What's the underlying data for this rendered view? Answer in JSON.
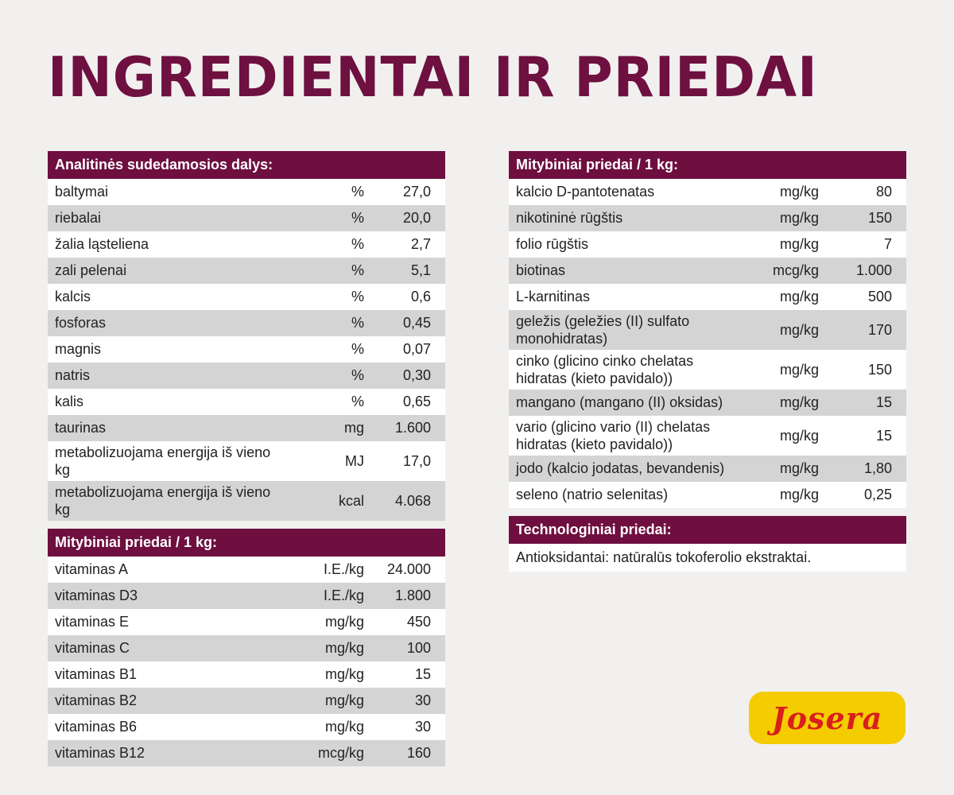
{
  "title": "INGREDIENTAI IR PRIEDAI",
  "analytical": {
    "heading": "Analitinės sudedamosios dalys:",
    "rows": [
      {
        "name": "baltymai",
        "unit": "%",
        "value": "27,0"
      },
      {
        "name": "riebalai",
        "unit": "%",
        "value": "20,0"
      },
      {
        "name": "žalia ląsteliena",
        "unit": "%",
        "value": "2,7"
      },
      {
        "name": "zali pelenai",
        "unit": "%",
        "value": "5,1"
      },
      {
        "name": "kalcis",
        "unit": "%",
        "value": "0,6"
      },
      {
        "name": "fosforas",
        "unit": "%",
        "value": "0,45"
      },
      {
        "name": "magnis",
        "unit": "%",
        "value": "0,07"
      },
      {
        "name": "natris",
        "unit": "%",
        "value": "0,30"
      },
      {
        "name": "kalis",
        "unit": "%",
        "value": "0,65"
      },
      {
        "name": "taurinas",
        "unit": "mg",
        "value": "1.600"
      },
      {
        "name": "metabolizuojama energija iš vieno kg",
        "unit": "MJ",
        "value": "17,0"
      },
      {
        "name": "metabolizuojama energija iš vieno kg",
        "unit": "kcal",
        "value": "4.068"
      }
    ]
  },
  "vitamins": {
    "heading": "Mitybiniai priedai / 1 kg:",
    "rows": [
      {
        "name": "vitaminas A",
        "unit": "I.E./kg",
        "value": "24.000"
      },
      {
        "name": "vitaminas D3",
        "unit": "I.E./kg",
        "value": "1.800"
      },
      {
        "name": "vitaminas E",
        "unit": "mg/kg",
        "value": "450"
      },
      {
        "name": "vitaminas C",
        "unit": "mg/kg",
        "value": "100"
      },
      {
        "name": "vitaminas B1",
        "unit": "mg/kg",
        "value": "15"
      },
      {
        "name": "vitaminas B2",
        "unit": "mg/kg",
        "value": "30"
      },
      {
        "name": "vitaminas B6",
        "unit": "mg/kg",
        "value": "30"
      },
      {
        "name": "vitaminas B12",
        "unit": "mcg/kg",
        "value": "160"
      }
    ]
  },
  "additives": {
    "heading": "Mitybiniai priedai / 1 kg:",
    "rows": [
      {
        "name": "kalcio D-pantotenatas",
        "unit": "mg/kg",
        "value": "80"
      },
      {
        "name": "nikotininė rūgštis",
        "unit": "mg/kg",
        "value": "150"
      },
      {
        "name": "folio rūgštis",
        "unit": "mg/kg",
        "value": "7"
      },
      {
        "name": "biotinas",
        "unit": "mcg/kg",
        "value": "1.000"
      },
      {
        "name": "L-karnitinas",
        "unit": "mg/kg",
        "value": "500"
      },
      {
        "name": "geležis (geležies (II) sulfato monohidratas)",
        "unit": "mg/kg",
        "value": "170"
      },
      {
        "name": "cinko (glicino cinko chelatas hidratas (kieto pavidalo))",
        "unit": "mg/kg",
        "value": "150"
      },
      {
        "name": "mangano (mangano (II) oksidas)",
        "unit": "mg/kg",
        "value": "15"
      },
      {
        "name": "vario (glicino vario (II) chelatas hidratas (kieto pavidalo))",
        "unit": "mg/kg",
        "value": "15"
      },
      {
        "name": "jodo (kalcio jodatas, bevandenis)",
        "unit": "mg/kg",
        "value": "1,80"
      },
      {
        "name": "seleno (natrio selenitas)",
        "unit": "mg/kg",
        "value": "0,25"
      }
    ]
  },
  "technological": {
    "heading": "Technologiniai priedai:",
    "text": "Antioksidantai: natūralūs tokoferolio ekstraktai."
  },
  "logo": {
    "text": "Josera",
    "background": "#f5cc00",
    "color": "#d81f1c"
  },
  "colors": {
    "accent": "#6e0f40",
    "alt_row": "#d4d4d4",
    "row": "#ffffff"
  }
}
